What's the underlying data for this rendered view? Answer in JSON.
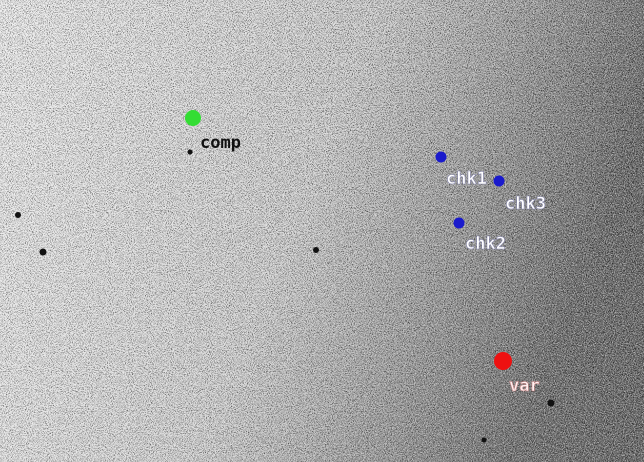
{
  "markers": [
    {
      "label": "comp"
    },
    {
      "label": "chk1"
    },
    {
      "label": "chk3"
    },
    {
      "label": "chk2"
    },
    {
      "label": "var"
    }
  ]
}
